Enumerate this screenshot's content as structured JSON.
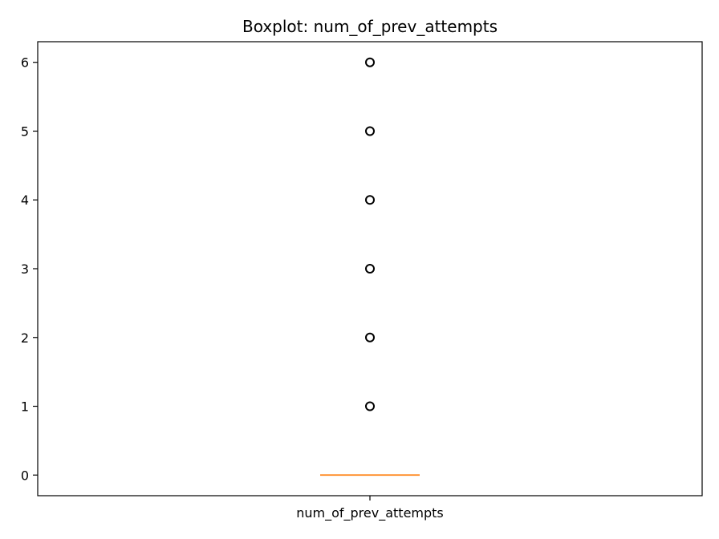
{
  "chart_data": {
    "type": "box",
    "title": "Boxplot: num_of_prev_attempts",
    "xlabel": "",
    "ylabel": "",
    "categories": [
      "num_of_prev_attempts"
    ],
    "boxes": [
      {
        "name": "num_of_prev_attempts",
        "min": 0,
        "q1": 0,
        "median": 0,
        "q3": 0,
        "max": 0,
        "outliers": [
          1,
          2,
          3,
          4,
          5,
          6
        ]
      }
    ],
    "ylim": [
      -0.3,
      6.3
    ],
    "yticks": [
      "0",
      "1",
      "2",
      "3",
      "4",
      "5",
      "6"
    ],
    "grid": false,
    "colors": {
      "median": "#ff7f0e",
      "box": "#000000",
      "outlier": "#000000"
    }
  }
}
